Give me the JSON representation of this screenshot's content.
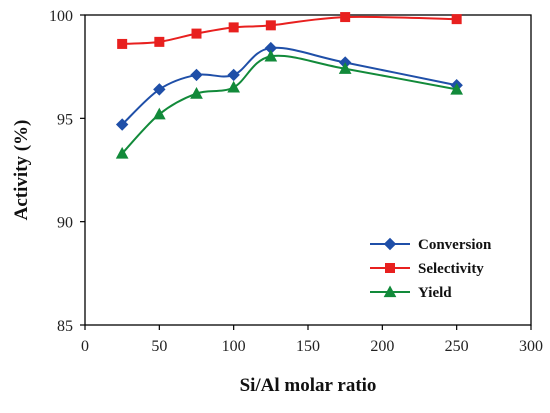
{
  "chart_data": {
    "type": "line",
    "title": "",
    "xlabel": "Si/Al molar ratio",
    "ylabel": "Activity (%)",
    "xlim": [
      0,
      300
    ],
    "ylim": [
      85,
      100
    ],
    "xticks": [
      0,
      50,
      100,
      150,
      200,
      250,
      300
    ],
    "yticks": [
      85,
      90,
      95,
      100
    ],
    "grid": false,
    "legend_position": "bottom-right",
    "series": [
      {
        "name": "Conversion",
        "color": "#1f4fa8",
        "marker": "diamond",
        "x": [
          25,
          50,
          75,
          100,
          125,
          175,
          250
        ],
        "y": [
          94.7,
          96.4,
          97.1,
          97.1,
          98.4,
          97.7,
          96.6
        ]
      },
      {
        "name": "Selectivity",
        "color": "#e8201f",
        "marker": "square",
        "x": [
          25,
          50,
          75,
          100,
          125,
          175,
          250
        ],
        "y": [
          98.6,
          98.7,
          99.1,
          99.4,
          99.5,
          99.9,
          99.8
        ]
      },
      {
        "name": "Yield",
        "color": "#128a3a",
        "marker": "triangle",
        "x": [
          25,
          50,
          75,
          100,
          125,
          175,
          250
        ],
        "y": [
          93.3,
          95.2,
          96.2,
          96.5,
          98.0,
          97.4,
          96.4
        ]
      }
    ]
  }
}
